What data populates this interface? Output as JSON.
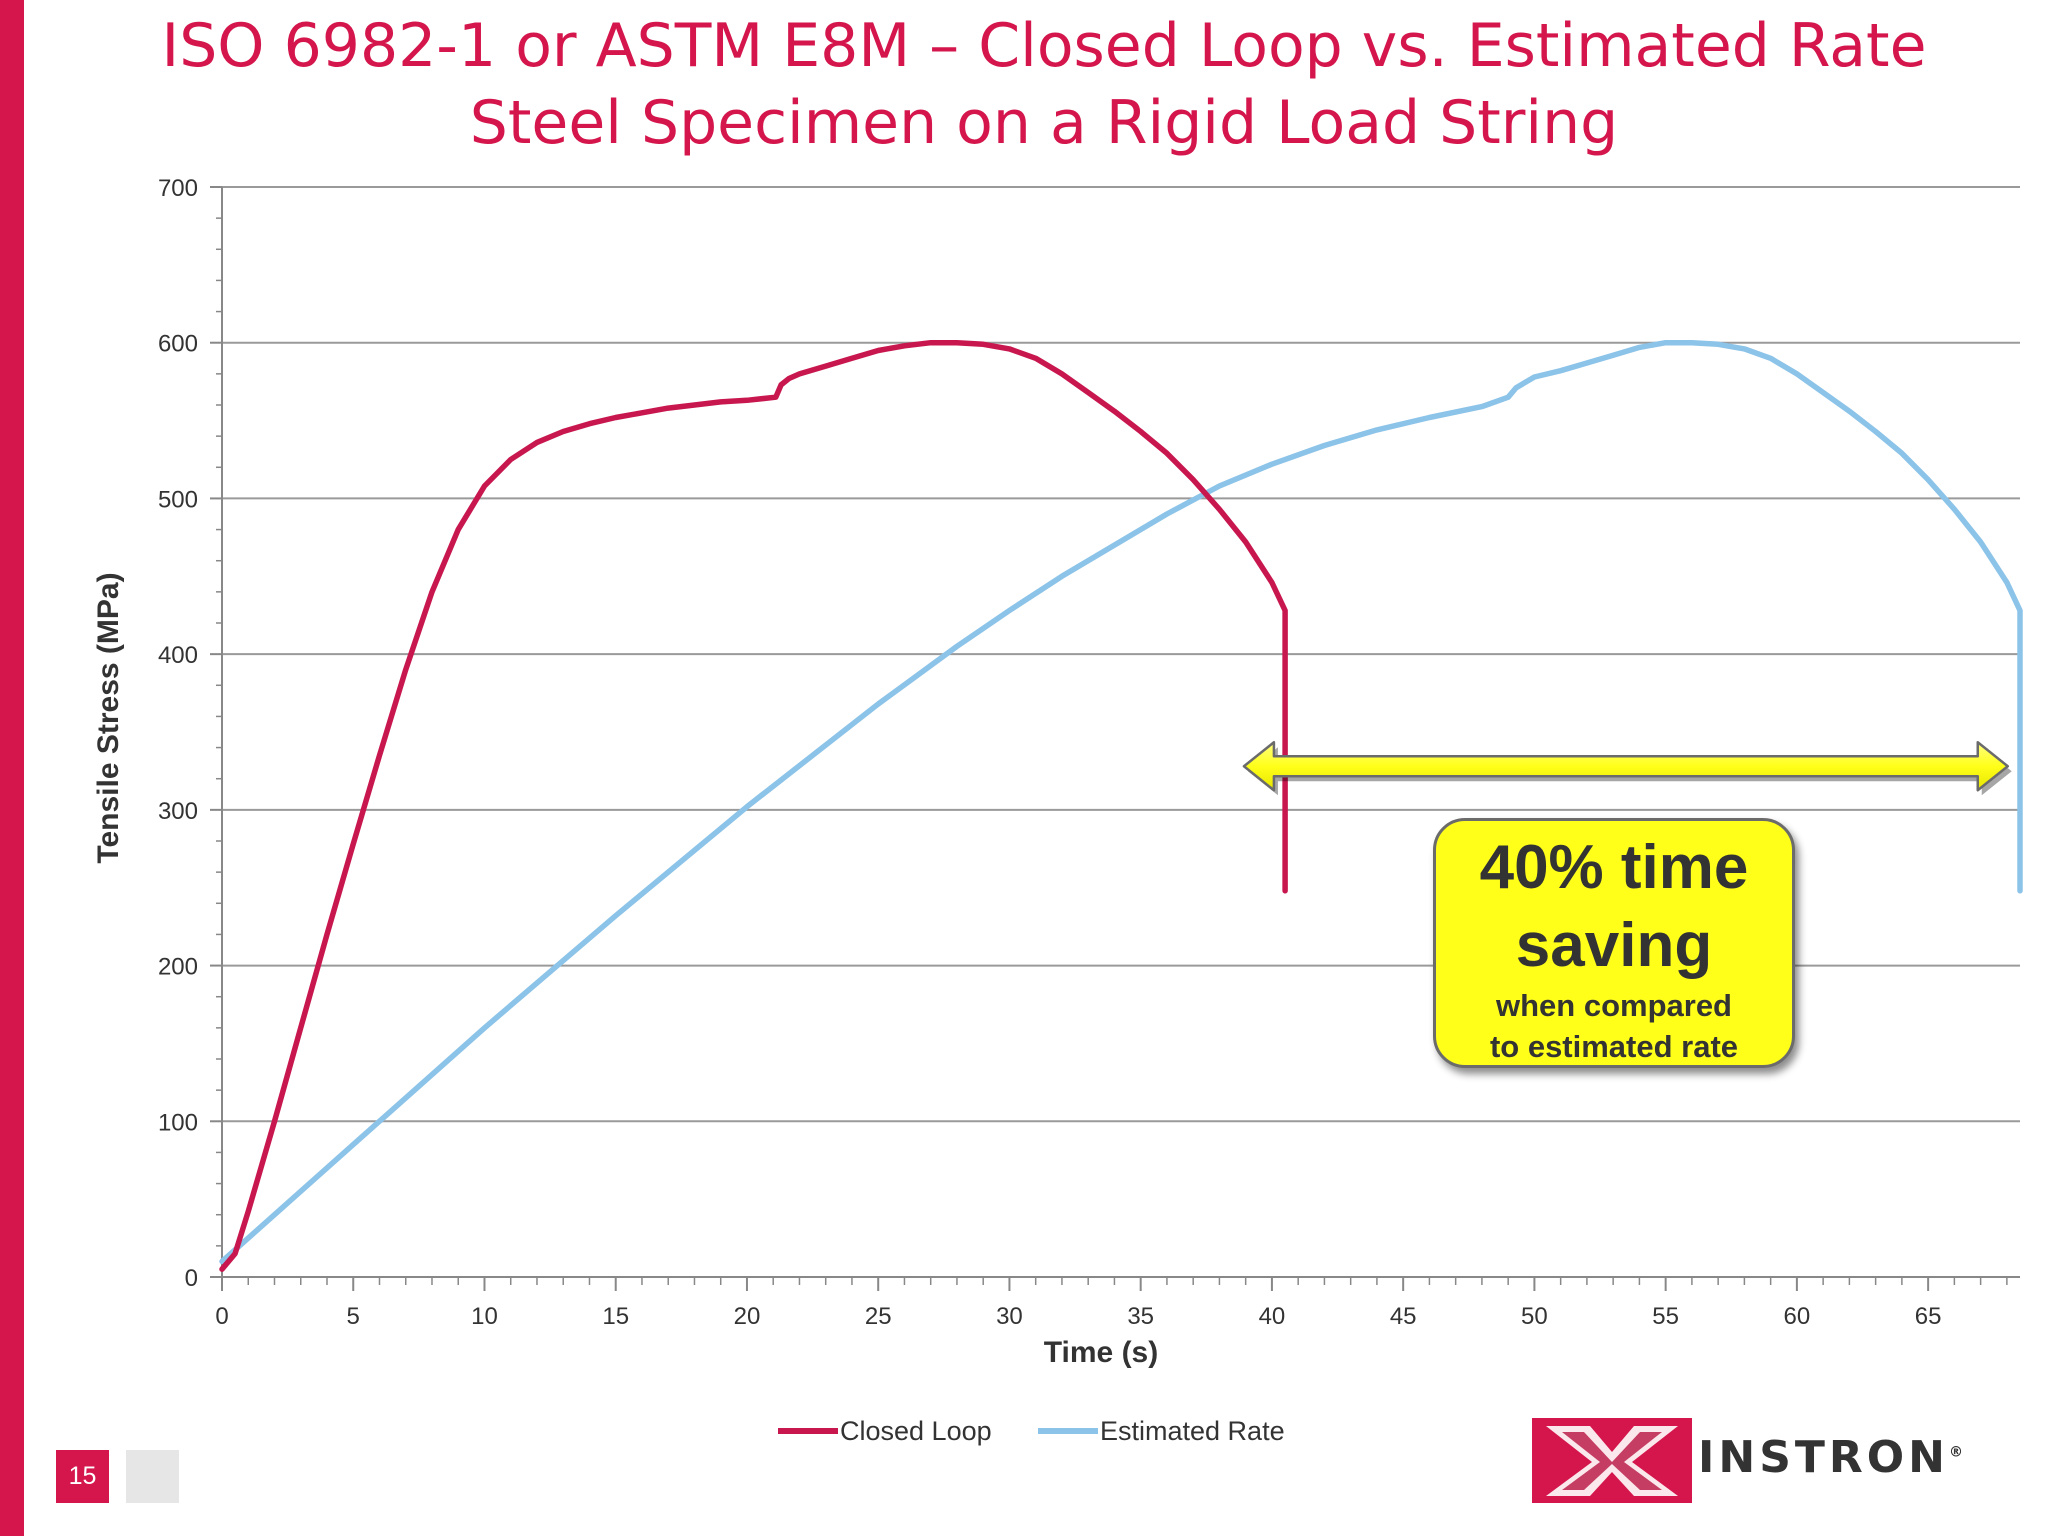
{
  "title": {
    "line1": "ISO 6982-1 or ASTM E8M – Closed Loop vs. Estimated Rate",
    "line2": "Steel Specimen on a Rigid Load String"
  },
  "colors": {
    "accent": "#d4164c",
    "closed_loop": "#c8174f",
    "estimated_rate": "#8cc3e8",
    "callout_fill": "#ffff1a"
  },
  "chart_data": {
    "type": "line",
    "title": "ISO 6982-1 or ASTM E8M – Closed Loop vs. Estimated Rate / Steel Specimen on a Rigid Load String",
    "xlabel": "Time (s)",
    "ylabel": "Tensile Stress (MPa)",
    "xlim": [
      0,
      68.5
    ],
    "ylim": [
      0,
      700
    ],
    "xticks": [
      0,
      5,
      10,
      15,
      20,
      25,
      30,
      35,
      40,
      45,
      50,
      55,
      60,
      65
    ],
    "yticks": [
      0,
      100,
      200,
      300,
      400,
      500,
      600,
      700
    ],
    "grid": "horizontal",
    "legend": "bottom",
    "series": [
      {
        "name": "Closed Loop",
        "x": [
          0,
          0.5,
          1,
          2,
          3,
          4,
          5,
          6,
          7,
          8,
          9,
          10,
          11,
          12,
          13,
          14,
          15,
          16,
          17,
          18,
          19,
          20,
          21.1,
          21.3,
          21.6,
          22,
          23,
          24,
          25,
          26,
          27,
          28,
          29,
          30,
          31,
          32,
          33,
          34,
          35,
          36,
          37,
          38,
          39,
          40,
          40.5,
          40.5,
          40.5
        ],
        "y": [
          5,
          15,
          42,
          100,
          160,
          220,
          278,
          335,
          390,
          440,
          480,
          508,
          525,
          536,
          543,
          548,
          552,
          555,
          558,
          560,
          562,
          563,
          565,
          573,
          577,
          580,
          585,
          590,
          595,
          598,
          600,
          600,
          599,
          596,
          590,
          580,
          568,
          556,
          543,
          529,
          512,
          493,
          472,
          446,
          428,
          350,
          248
        ]
      },
      {
        "name": "Estimated Rate",
        "x": [
          0,
          5,
          10,
          15,
          20,
          25,
          28,
          30,
          32,
          34,
          36,
          38,
          40,
          42,
          44,
          46,
          48,
          49,
          49.3,
          49.7,
          50,
          51,
          52,
          53,
          54,
          55,
          56,
          57,
          58,
          59,
          60,
          61,
          62,
          63,
          64,
          65,
          66,
          67,
          68,
          68.5,
          68.5,
          68.5
        ],
        "y": [
          10,
          85,
          160,
          232,
          302,
          368,
          405,
          428,
          450,
          470,
          490,
          508,
          522,
          534,
          544,
          552,
          559,
          565,
          571,
          575,
          578,
          582,
          587,
          592,
          597,
          600,
          600,
          599,
          596,
          590,
          580,
          568,
          556,
          543,
          529,
          512,
          493,
          472,
          446,
          428,
          350,
          248
        ]
      }
    ],
    "annotation": {
      "arrow_from_x": 40,
      "arrow_to_x": 67.5,
      "arrow_y": 328,
      "line1": "40% time",
      "line2": "saving",
      "line3": "when compared",
      "line4": "to estimated rate"
    }
  },
  "footer": {
    "page_number": "15",
    "logo_text": "INSTRON",
    "logo_mark": "®"
  }
}
